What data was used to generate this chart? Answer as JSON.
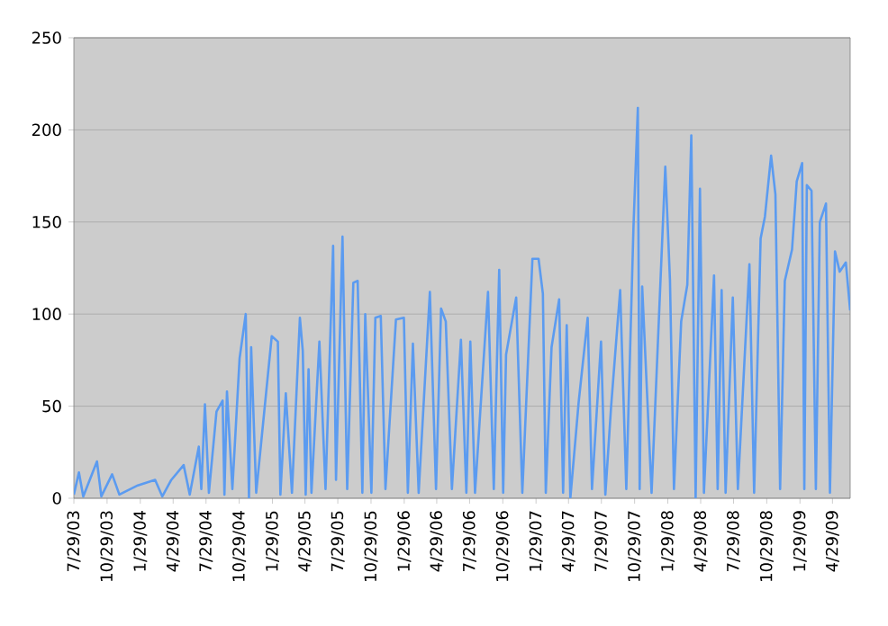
{
  "chart_data": {
    "type": "line",
    "color": "#5b9bf0",
    "x": [
      "2003-07-29",
      "2003-08-12",
      "2003-08-24",
      "2003-10-01",
      "2003-10-13",
      "2003-11-12",
      "2003-12-02",
      "2004-01-22",
      "2004-03-10",
      "2004-03-30",
      "2004-04-24",
      "2004-05-28",
      "2004-06-14",
      "2004-07-09",
      "2004-07-16",
      "2004-07-26",
      "2004-08-06",
      "2004-08-27",
      "2004-09-13",
      "2004-09-18",
      "2004-09-25",
      "2004-10-10",
      "2004-10-30",
      "2004-11-16",
      "2004-11-25",
      "2004-12-01",
      "2004-12-15",
      "2005-01-27",
      "2005-02-13",
      "2005-02-20",
      "2005-03-07",
      "2005-03-24",
      "2005-04-15",
      "2005-04-23",
      "2005-05-01",
      "2005-05-09",
      "2005-05-17",
      "2005-06-08",
      "2005-06-25",
      "2005-07-16",
      "2005-07-24",
      "2005-08-11",
      "2005-08-24",
      "2005-09-10",
      "2005-09-22",
      "2005-10-05",
      "2005-10-13",
      "2005-10-30",
      "2005-11-10",
      "2005-11-25",
      "2005-12-08",
      "2006-01-06",
      "2006-01-28",
      "2006-02-08",
      "2006-02-22",
      "2006-03-10",
      "2006-04-10",
      "2006-04-27",
      "2006-05-11",
      "2006-05-24",
      "2006-06-10",
      "2006-07-05",
      "2006-07-20",
      "2006-07-31",
      "2006-08-13",
      "2006-09-18",
      "2006-10-04",
      "2006-10-19",
      "2006-10-30",
      "2006-11-07",
      "2006-12-05",
      "2006-12-22",
      "2007-01-19",
      "2007-02-05",
      "2007-02-17",
      "2007-02-25",
      "2007-03-13",
      "2007-04-03",
      "2007-04-14",
      "2007-04-24",
      "2007-05-04",
      "2007-05-27",
      "2007-06-21",
      "2007-07-03",
      "2007-07-28",
      "2007-08-09",
      "2007-08-25",
      "2007-09-19",
      "2007-10-06",
      "2007-10-26",
      "2007-11-07",
      "2007-11-12",
      "2007-11-19",
      "2007-12-15",
      "2008-01-22",
      "2008-02-04",
      "2008-02-15",
      "2008-03-06",
      "2008-03-23",
      "2008-04-03",
      "2008-04-15",
      "2008-04-27",
      "2008-05-08",
      "2008-06-05",
      "2008-06-15",
      "2008-06-26",
      "2008-07-07",
      "2008-07-27",
      "2008-08-10",
      "2008-09-11",
      "2008-09-24",
      "2008-10-12",
      "2008-10-24",
      "2008-11-10",
      "2008-11-22",
      "2008-12-05",
      "2008-12-18",
      "2009-01-07",
      "2009-01-20",
      "2009-02-04",
      "2009-02-10",
      "2009-02-17",
      "2009-03-02",
      "2009-03-14",
      "2009-03-25",
      "2009-04-11",
      "2009-04-22",
      "2009-05-06",
      "2009-05-19",
      "2009-06-05",
      "2009-06-17"
    ],
    "values": [
      2,
      14,
      1,
      20,
      1,
      13,
      2,
      7,
      10,
      1,
      10,
      18,
      2,
      28,
      5,
      51,
      3,
      47,
      53,
      2,
      58,
      5,
      76,
      100,
      0,
      82,
      3,
      88,
      85,
      2,
      57,
      3,
      98,
      80,
      2,
      70,
      3,
      85,
      5,
      137,
      10,
      142,
      5,
      117,
      118,
      3,
      100,
      3,
      98,
      99,
      5,
      97,
      98,
      3,
      84,
      3,
      112,
      5,
      103,
      96,
      5,
      86,
      3,
      85,
      3,
      112,
      5,
      124,
      3,
      78,
      109,
      3,
      130,
      130,
      111,
      3,
      82,
      108,
      3,
      94,
      0,
      52,
      98,
      5,
      85,
      2,
      50,
      113,
      5,
      148,
      212,
      5,
      115,
      3,
      180,
      118,
      5,
      96,
      116,
      197,
      0,
      168,
      3,
      121,
      5,
      113,
      3,
      109,
      5,
      127,
      3,
      141,
      153,
      186,
      165,
      5,
      118,
      135,
      172,
      182,
      5,
      170,
      167,
      5,
      150,
      160,
      3,
      134,
      123,
      128,
      102
    ],
    "xlim": [
      "2003-07-29",
      "2009-06-17"
    ],
    "ylim": [
      0,
      250
    ],
    "yticks": [
      0,
      50,
      100,
      150,
      200,
      250
    ],
    "xticks": [
      {
        "value": "2003-07-29",
        "label": "7/29/03"
      },
      {
        "value": "2003-10-29",
        "label": "10/29/03"
      },
      {
        "value": "2004-01-29",
        "label": "1/29/04"
      },
      {
        "value": "2004-04-29",
        "label": "4/29/04"
      },
      {
        "value": "2004-07-29",
        "label": "7/29/04"
      },
      {
        "value": "2004-10-29",
        "label": "10/29/04"
      },
      {
        "value": "2005-01-29",
        "label": "1/29/05"
      },
      {
        "value": "2005-04-29",
        "label": "4/29/05"
      },
      {
        "value": "2005-07-29",
        "label": "7/29/05"
      },
      {
        "value": "2005-10-29",
        "label": "10/29/05"
      },
      {
        "value": "2006-01-29",
        "label": "1/29/06"
      },
      {
        "value": "2006-04-29",
        "label": "4/29/06"
      },
      {
        "value": "2006-07-29",
        "label": "7/29/06"
      },
      {
        "value": "2006-10-29",
        "label": "10/29/06"
      },
      {
        "value": "2007-01-29",
        "label": "1/29/07"
      },
      {
        "value": "2007-04-29",
        "label": "4/29/07"
      },
      {
        "value": "2007-07-29",
        "label": "7/29/07"
      },
      {
        "value": "2007-10-29",
        "label": "10/29/07"
      },
      {
        "value": "2008-01-29",
        "label": "1/29/08"
      },
      {
        "value": "2008-04-29",
        "label": "4/29/08"
      },
      {
        "value": "2008-07-29",
        "label": "7/29/08"
      },
      {
        "value": "2008-10-29",
        "label": "10/29/08"
      },
      {
        "value": "2009-01-29",
        "label": "1/29/09"
      },
      {
        "value": "2009-04-29",
        "label": "4/29/09"
      }
    ],
    "grid": "y"
  }
}
